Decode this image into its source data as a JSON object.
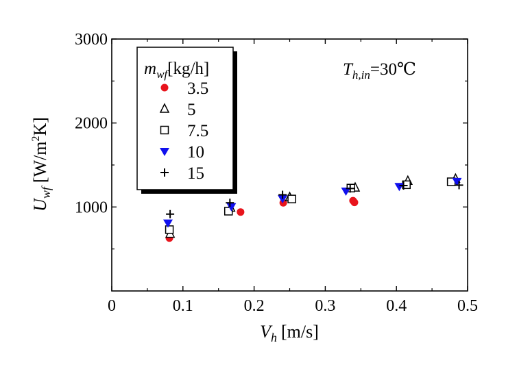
{
  "chart_data": {
    "type": "scatter",
    "xlabel": {
      "main": "V",
      "sub": "h",
      "unit": "[m/s]"
    },
    "ylabel": {
      "main": "U",
      "sub": "wf",
      "unit_pre": "[W/m",
      "unit_sup": "2",
      "unit_post": "K]"
    },
    "xlim": [
      0,
      0.5
    ],
    "ylim": [
      0,
      3000
    ],
    "xticks": [
      0,
      0.1,
      0.2,
      0.3,
      0.4,
      0.5
    ],
    "xtick_labels": [
      "0",
      "0.1",
      "0.2",
      "0.3",
      "0.4",
      "0.5"
    ],
    "yticks": [
      1000,
      2000,
      3000
    ],
    "ytick_labels": [
      "1000",
      "2000",
      "3000"
    ],
    "grid": false,
    "legend_position": "top-left",
    "legend_title": {
      "main": "m",
      "sub": "wf",
      "unit": "[kg/h]"
    },
    "annotation": {
      "main": "T",
      "sub": "h,in",
      "rest": "=30℃"
    },
    "series": [
      {
        "name": "3.5",
        "marker": "filled-circle",
        "color": "#e8141c",
        "x": [
          0.081,
          0.181,
          0.241,
          0.339,
          0.341
        ],
        "y": [
          630,
          940,
          1050,
          1075,
          1055
        ]
      },
      {
        "name": "5",
        "marker": "open-triangle-up",
        "color": "#000000",
        "x": [
          0.082,
          0.167,
          0.25,
          0.342,
          0.416,
          0.483
        ],
        "y": [
          680,
          990,
          1115,
          1230,
          1310,
          1335
        ]
      },
      {
        "name": "7.5",
        "marker": "open-square",
        "color": "#000000",
        "x": [
          0.081,
          0.164,
          0.253,
          0.336,
          0.414,
          0.477
        ],
        "y": [
          730,
          950,
          1095,
          1225,
          1265,
          1300
        ]
      },
      {
        "name": "10",
        "marker": "filled-triangle-down",
        "color": "#1010ee",
        "x": [
          0.079,
          0.168,
          0.24,
          0.329,
          0.404,
          0.485
        ],
        "y": [
          810,
          1005,
          1100,
          1190,
          1245,
          1305
        ]
      },
      {
        "name": "15",
        "marker": "plus",
        "color": "#000000",
        "x": [
          0.082,
          0.166,
          0.24,
          0.335,
          0.41,
          0.488
        ],
        "y": [
          915,
          1050,
          1145,
          1220,
          1255,
          1260
        ]
      }
    ]
  }
}
